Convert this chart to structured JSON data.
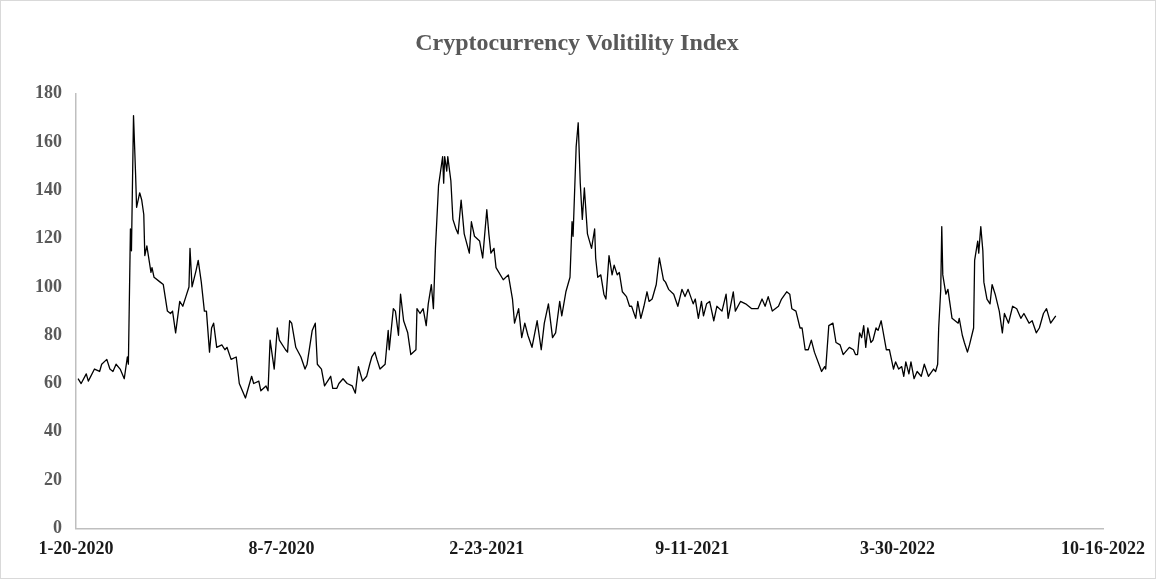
{
  "chart_data": {
    "type": "line",
    "title": "Cryptocurrency Volitility Index",
    "x": [
      "2020-01-22",
      "2020-01-25",
      "2020-01-30",
      "2020-02-01",
      "2020-02-07",
      "2020-02-12",
      "2020-02-14",
      "2020-02-19",
      "2020-02-22",
      "2020-02-25",
      "2020-02-28",
      "2020-03-03",
      "2020-03-07",
      "2020-03-10",
      "2020-03-11",
      "2020-03-13",
      "2020-03-14",
      "2020-03-16",
      "2020-03-18",
      "2020-03-19",
      "2020-03-22",
      "2020-03-24",
      "2020-03-26",
      "2020-03-27",
      "2020-03-29",
      "2020-04-02",
      "2020-04-03",
      "2020-04-05",
      "2020-04-11",
      "2020-04-14",
      "2020-04-18",
      "2020-04-21",
      "2020-04-23",
      "2020-04-26",
      "2020-04-30",
      "2020-05-03",
      "2020-05-06",
      "2020-05-09",
      "2020-05-10",
      "2020-05-12",
      "2020-05-16",
      "2020-05-18",
      "2020-05-21",
      "2020-05-24",
      "2020-05-26",
      "2020-05-29",
      "2020-05-31",
      "2020-06-02",
      "2020-06-05",
      "2020-06-10",
      "2020-06-13",
      "2020-06-15",
      "2020-06-19",
      "2020-06-24",
      "2020-06-27",
      "2020-07-03",
      "2020-07-09",
      "2020-07-11",
      "2020-07-16",
      "2020-07-18",
      "2020-07-23",
      "2020-07-25",
      "2020-07-27",
      "2020-07-31",
      "2020-08-03",
      "2020-08-05",
      "2020-08-11",
      "2020-08-13",
      "2020-08-15",
      "2020-08-17",
      "2020-08-21",
      "2020-08-26",
      "2020-08-30",
      "2020-09-01",
      "2020-09-06",
      "2020-09-09",
      "2020-09-11",
      "2020-09-15",
      "2020-09-18",
      "2020-09-24",
      "2020-09-26",
      "2020-09-30",
      "2020-10-02",
      "2020-10-06",
      "2020-10-10",
      "2020-10-15",
      "2020-10-18",
      "2020-10-21",
      "2020-10-25",
      "2020-10-29",
      "2020-11-01",
      "2020-11-03",
      "2020-11-06",
      "2020-11-08",
      "2020-11-11",
      "2020-11-16",
      "2020-11-19",
      "2020-11-20",
      "2020-11-24",
      "2020-11-26",
      "2020-11-29",
      "2020-12-01",
      "2020-12-04",
      "2020-12-08",
      "2020-12-11",
      "2020-12-16",
      "2020-12-17",
      "2020-12-20",
      "2020-12-23",
      "2020-12-26",
      "2020-12-28",
      "2020-12-31",
      "2021-01-02",
      "2021-01-04",
      "2021-01-07",
      "2021-01-11",
      "2021-01-12",
      "2021-01-13",
      "2021-01-15",
      "2021-01-16",
      "2021-01-19",
      "2021-01-21",
      "2021-01-24",
      "2021-01-26",
      "2021-01-29",
      "2021-02-01",
      "2021-02-06",
      "2021-02-08",
      "2021-02-11",
      "2021-02-16",
      "2021-02-19",
      "2021-02-23",
      "2021-02-25",
      "2021-02-27",
      "2021-03-02",
      "2021-03-04",
      "2021-03-11",
      "2021-03-16",
      "2021-03-20",
      "2021-03-22",
      "2021-03-26",
      "2021-03-29",
      "2021-04-01",
      "2021-04-04",
      "2021-04-08",
      "2021-04-13",
      "2021-04-17",
      "2021-04-20",
      "2021-04-24",
      "2021-04-28",
      "2021-05-01",
      "2021-05-05",
      "2021-05-07",
      "2021-05-11",
      "2021-05-15",
      "2021-05-17",
      "2021-05-18",
      "2021-05-21",
      "2021-05-23",
      "2021-05-25",
      "2021-05-27",
      "2021-05-29",
      "2021-06-01",
      "2021-06-05",
      "2021-06-08",
      "2021-06-09",
      "2021-06-11",
      "2021-06-14",
      "2021-06-17",
      "2021-06-19",
      "2021-06-22",
      "2021-06-25",
      "2021-06-27",
      "2021-06-30",
      "2021-07-02",
      "2021-07-05",
      "2021-07-09",
      "2021-07-12",
      "2021-07-14",
      "2021-07-18",
      "2021-07-20",
      "2021-07-23",
      "2021-07-26",
      "2021-07-29",
      "2021-07-31",
      "2021-08-03",
      "2021-08-07",
      "2021-08-10",
      "2021-08-14",
      "2021-08-16",
      "2021-08-19",
      "2021-08-24",
      "2021-08-28",
      "2021-09-01",
      "2021-09-04",
      "2021-09-07",
      "2021-09-12",
      "2021-09-14",
      "2021-09-17",
      "2021-09-20",
      "2021-09-22",
      "2021-09-25",
      "2021-09-28",
      "2021-10-02",
      "2021-10-05",
      "2021-10-10",
      "2021-10-14",
      "2021-10-16",
      "2021-10-21",
      "2021-10-23",
      "2021-10-28",
      "2021-11-02",
      "2021-11-08",
      "2021-11-14",
      "2021-11-18",
      "2021-11-21",
      "2021-11-24",
      "2021-11-28",
      "2021-12-04",
      "2021-12-07",
      "2021-12-12",
      "2021-12-15",
      "2021-12-17",
      "2021-12-21",
      "2021-12-25",
      "2021-12-27",
      "2021-12-30",
      "2022-01-02",
      "2022-01-05",
      "2022-01-08",
      "2022-01-15",
      "2022-01-18",
      "2022-01-19",
      "2022-01-22",
      "2022-01-26",
      "2022-01-29",
      "2022-02-02",
      "2022-02-05",
      "2022-02-11",
      "2022-02-15",
      "2022-02-17",
      "2022-02-19",
      "2022-02-21",
      "2022-02-23",
      "2022-02-25",
      "2022-02-27",
      "2022-03-01",
      "2022-03-04",
      "2022-03-06",
      "2022-03-09",
      "2022-03-11",
      "2022-03-14",
      "2022-03-19",
      "2022-03-22",
      "2022-03-26",
      "2022-03-28",
      "2022-03-31",
      "2022-04-03",
      "2022-04-05",
      "2022-04-07",
      "2022-04-10",
      "2022-04-12",
      "2022-04-15",
      "2022-04-18",
      "2022-04-22",
      "2022-04-25",
      "2022-04-29",
      "2022-05-04",
      "2022-05-06",
      "2022-05-08",
      "2022-05-09",
      "2022-05-11",
      "2022-05-12",
      "2022-05-13",
      "2022-05-16",
      "2022-05-18",
      "2022-05-20",
      "2022-05-22",
      "2022-05-28",
      "2022-05-29",
      "2022-06-01",
      "2022-06-03",
      "2022-06-06",
      "2022-06-08",
      "2022-06-12",
      "2022-06-13",
      "2022-06-16",
      "2022-06-17",
      "2022-06-19",
      "2022-06-21",
      "2022-06-22",
      "2022-06-25",
      "2022-06-28",
      "2022-06-30",
      "2022-07-03",
      "2022-07-07",
      "2022-07-10",
      "2022-07-12",
      "2022-07-16",
      "2022-07-20",
      "2022-07-24",
      "2022-07-28",
      "2022-07-31",
      "2022-08-05",
      "2022-08-08",
      "2022-08-12",
      "2022-08-15",
      "2022-08-19",
      "2022-08-22",
      "2022-08-26",
      "2022-08-31"
    ],
    "series": [
      {
        "color": "#000000",
        "values": [
          62,
          60,
          64,
          61,
          66,
          65,
          68,
          70,
          66,
          65,
          68,
          66,
          62,
          71,
          68,
          124,
          115,
          171,
          147,
          133,
          139,
          136,
          130,
          113,
          117,
          106,
          108,
          104,
          102,
          101,
          90,
          89,
          90,
          81,
          94,
          92,
          96,
          100,
          116,
          100,
          107,
          111,
          102,
          90,
          90,
          73,
          83,
          85,
          75,
          76,
          74,
          75,
          70,
          71,
          60,
          54,
          63,
          60,
          61,
          57,
          59,
          57,
          78,
          66,
          83,
          78,
          74,
          73,
          86,
          85,
          75,
          71,
          66,
          68,
          82,
          85,
          68,
          66,
          59,
          63,
          58,
          58,
          60,
          62,
          60,
          59,
          56,
          67,
          61,
          63,
          68,
          71,
          73,
          70,
          66,
          68,
          82,
          74,
          91,
          90,
          80,
          97,
          86,
          81,
          72,
          74,
          91,
          89,
          91,
          84,
          93,
          101,
          91,
          116,
          142,
          154,
          143,
          154,
          148,
          154,
          144,
          128,
          124,
          122,
          136,
          122,
          114,
          127,
          121,
          119,
          112,
          132,
          122,
          114,
          116,
          108,
          103,
          105,
          95,
          85,
          91,
          79,
          85,
          80,
          75,
          86,
          74,
          85,
          93,
          79,
          81,
          94,
          88,
          98,
          104,
          127,
          121,
          158,
          168,
          143,
          128,
          141,
          122,
          116,
          124,
          112,
          104,
          105,
          97,
          95,
          113,
          105,
          109,
          105,
          106,
          98,
          96,
          92,
          92,
          87,
          94,
          87,
          92,
          98,
          94,
          95,
          101,
          112,
          103,
          102,
          99,
          97,
          92,
          99,
          96,
          99,
          93,
          95,
          87,
          94,
          88,
          93,
          94,
          86,
          92,
          90,
          97,
          87,
          98,
          90,
          94,
          93,
          91,
          91,
          95,
          92,
          96,
          90,
          92,
          95,
          98,
          97,
          91,
          90,
          83,
          83,
          74,
          74,
          78,
          73,
          65,
          67,
          66,
          84,
          85,
          77,
          76,
          72,
          75,
          74,
          72,
          72,
          81,
          79,
          84,
          75,
          83,
          77,
          78,
          83,
          82,
          86,
          74,
          74,
          66,
          69,
          66,
          67,
          63,
          69,
          64,
          69,
          62,
          65,
          63,
          68,
          63,
          66,
          65,
          68,
          83,
          99,
          125,
          105,
          97,
          99,
          93,
          87,
          85,
          87,
          80,
          77,
          73,
          76,
          83,
          111,
          119,
          114,
          125,
          115,
          102,
          95,
          93,
          101,
          97,
          90,
          81,
          89,
          85,
          92,
          91,
          87,
          89,
          85,
          86,
          81,
          83,
          89,
          91,
          85,
          88
        ]
      }
    ],
    "xlim": [
      "2020-01-20",
      "2022-10-16"
    ],
    "xticks": [
      {
        "value": "2020-01-20",
        "label": "1-20-2020"
      },
      {
        "value": "2020-08-07",
        "label": "8-7-2020"
      },
      {
        "value": "2021-02-23",
        "label": "2-23-2021"
      },
      {
        "value": "2021-09-11",
        "label": "9-11-2021"
      },
      {
        "value": "2022-03-30",
        "label": "3-30-2022"
      },
      {
        "value": "2022-10-16",
        "label": "10-16-2022"
      }
    ],
    "ylim": [
      0,
      180
    ],
    "yticks": [
      0,
      20,
      40,
      60,
      80,
      100,
      120,
      140,
      160,
      180
    ],
    "grid": false,
    "marker": "none",
    "line_style": "solid"
  }
}
